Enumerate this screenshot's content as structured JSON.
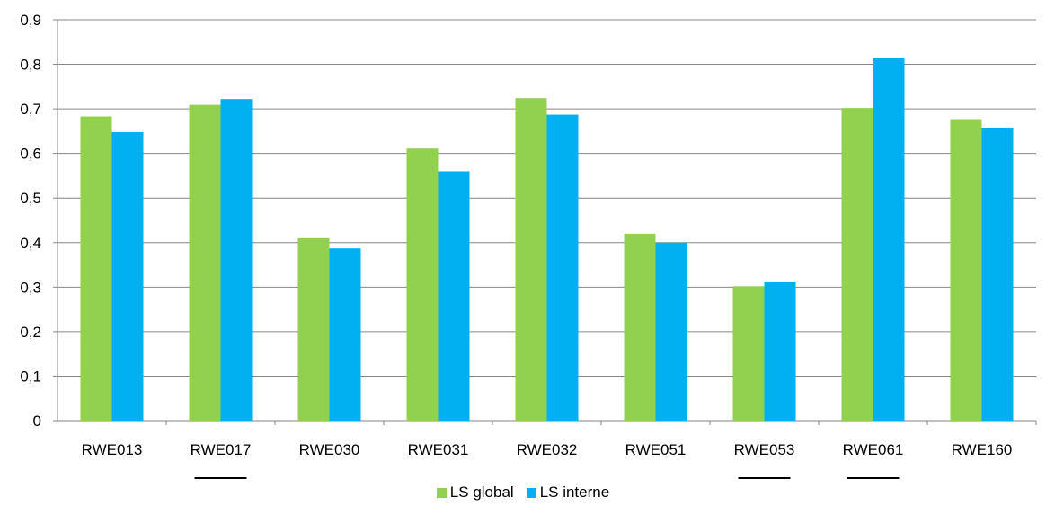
{
  "chart_data": {
    "type": "bar",
    "categories": [
      "RWE013",
      "RWE017",
      "RWE030",
      "RWE031",
      "RWE032",
      "RWE051",
      "RWE053",
      "RWE061",
      "RWE160"
    ],
    "underlined_categories": [
      "RWE017",
      "RWE053",
      "RWE061"
    ],
    "series": [
      {
        "name": "LS global",
        "color": "#92D050",
        "values": [
          0.683,
          0.709,
          0.41,
          0.611,
          0.724,
          0.42,
          0.302,
          0.702,
          0.677
        ]
      },
      {
        "name": "LS interne",
        "color": "#00B0F0",
        "values": [
          0.648,
          0.722,
          0.387,
          0.56,
          0.687,
          0.4,
          0.311,
          0.814,
          0.658
        ]
      }
    ],
    "ylim": [
      0,
      0.9
    ],
    "yticks": [
      "0",
      "0,1",
      "0,2",
      "0,3",
      "0,4",
      "0,5",
      "0,6",
      "0,7",
      "0,8",
      "0,9"
    ],
    "grid": true,
    "legend_position": "bottom"
  }
}
